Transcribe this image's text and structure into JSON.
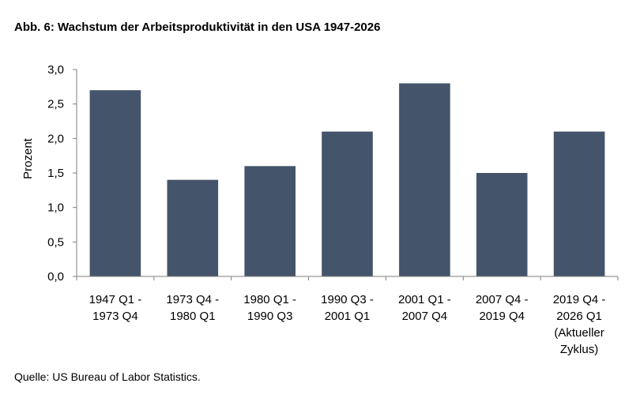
{
  "chart_data": {
    "type": "bar",
    "title": "Abb. 6: Wachstum der Arbeitsproduktivität in den USA 1947-2026",
    "ylabel": "Prozent",
    "xlabel": "",
    "source": "Quelle: US Bureau of Labor Statistics.",
    "ylim": [
      0,
      3.0
    ],
    "yticks": [
      "0,0",
      "0,5",
      "1,0",
      "1,5",
      "2,0",
      "2,5",
      "3,0"
    ],
    "ytick_values": [
      0,
      0.5,
      1.0,
      1.5,
      2.0,
      2.5,
      3.0
    ],
    "categories": [
      [
        "1947 Q1 -",
        "1973 Q4"
      ],
      [
        "1973 Q4 -",
        "1980 Q1"
      ],
      [
        "1980 Q1 -",
        "1990 Q3"
      ],
      [
        "1990 Q3 -",
        "2001 Q1"
      ],
      [
        "2001 Q1 -",
        "2007 Q4"
      ],
      [
        "2007 Q4 -",
        "2019 Q4"
      ],
      [
        "2019 Q4 -",
        "2026 Q1",
        "(Aktueller",
        "Zyklus)"
      ]
    ],
    "values": [
      2.7,
      1.4,
      1.6,
      2.1,
      2.8,
      1.5,
      2.1
    ],
    "bar_color": "#44546a",
    "grid": false
  }
}
